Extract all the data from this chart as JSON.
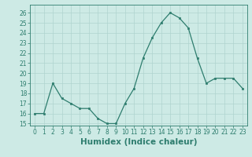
{
  "x": [
    0,
    1,
    2,
    3,
    4,
    5,
    6,
    7,
    8,
    9,
    10,
    11,
    12,
    13,
    14,
    15,
    16,
    17,
    18,
    19,
    20,
    21,
    22,
    23
  ],
  "y": [
    16.0,
    16.0,
    19.0,
    17.5,
    17.0,
    16.5,
    16.5,
    15.5,
    15.0,
    15.0,
    17.0,
    18.5,
    21.5,
    23.5,
    25.0,
    26.0,
    25.5,
    24.5,
    21.5,
    19.0,
    19.5,
    19.5,
    19.5,
    18.5
  ],
  "xlabel": "Humidex (Indice chaleur)",
  "ylim": [
    14.8,
    26.8
  ],
  "xlim": [
    -0.5,
    23.5
  ],
  "yticks": [
    15,
    16,
    17,
    18,
    19,
    20,
    21,
    22,
    23,
    24,
    25,
    26
  ],
  "xticks": [
    0,
    1,
    2,
    3,
    4,
    5,
    6,
    7,
    8,
    9,
    10,
    11,
    12,
    13,
    14,
    15,
    16,
    17,
    18,
    19,
    20,
    21,
    22,
    23
  ],
  "line_color": "#2e7d6e",
  "marker_color": "#2e7d6e",
  "bg_color": "#cdeae5",
  "grid_color": "#afd4cf",
  "tick_label_fontsize": 5.5,
  "xlabel_fontsize": 7.5
}
